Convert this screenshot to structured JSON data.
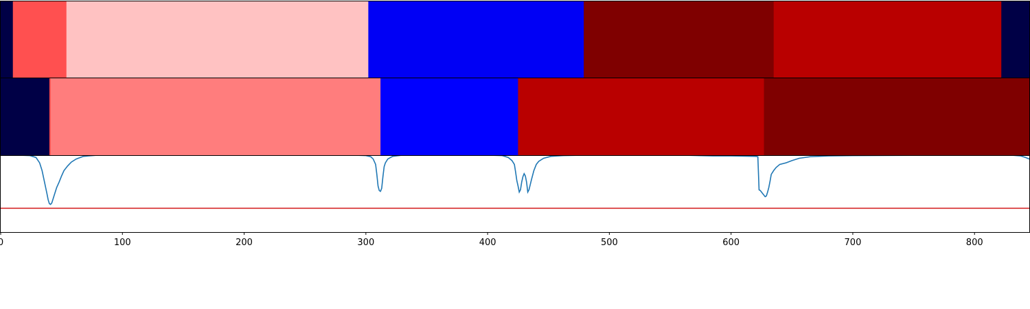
{
  "chart_data": [
    {
      "type": "heatmap",
      "x_range": [
        0,
        845
      ],
      "segments": [
        {
          "start": 0,
          "end": 10,
          "color": "#000046"
        },
        {
          "start": 10,
          "end": 54,
          "color": "#ff5050"
        },
        {
          "start": 54,
          "end": 302,
          "color": "#ffc2c2"
        },
        {
          "start": 302,
          "end": 479,
          "color": "#0000f5"
        },
        {
          "start": 479,
          "end": 635,
          "color": "#7f0000"
        },
        {
          "start": 635,
          "end": 822,
          "color": "#b90000"
        },
        {
          "start": 822,
          "end": 845,
          "color": "#000046"
        }
      ]
    },
    {
      "type": "heatmap",
      "x_range": [
        0,
        845
      ],
      "segments": [
        {
          "start": 0,
          "end": 40,
          "color": "#000046"
        },
        {
          "start": 40,
          "end": 41,
          "color": "#ff4a4a"
        },
        {
          "start": 41,
          "end": 312,
          "color": "#ff7d7d"
        },
        {
          "start": 312,
          "end": 425,
          "color": "#0000ff"
        },
        {
          "start": 425,
          "end": 627,
          "color": "#b90000"
        },
        {
          "start": 627,
          "end": 845,
          "color": "#7f0000"
        }
      ]
    },
    {
      "type": "line",
      "xlim": [
        0,
        845
      ],
      "ylim": [
        0,
        1
      ],
      "x_ticks": [
        0,
        100,
        200,
        300,
        400,
        500,
        600,
        700,
        800
      ],
      "series": [
        {
          "color": "#1f77b4",
          "points": [
            [
              0,
              1.0
            ],
            [
              14,
              1.0
            ],
            [
              24,
              0.995
            ],
            [
              29,
              0.97
            ],
            [
              32,
              0.9
            ],
            [
              34,
              0.8
            ],
            [
              36,
              0.65
            ],
            [
              38,
              0.5
            ],
            [
              39,
              0.42
            ],
            [
              40,
              0.37
            ],
            [
              41,
              0.36
            ],
            [
              42,
              0.38
            ],
            [
              44,
              0.48
            ],
            [
              46,
              0.58
            ],
            [
              48,
              0.65
            ],
            [
              50,
              0.73
            ],
            [
              52,
              0.8
            ],
            [
              55,
              0.86
            ],
            [
              58,
              0.91
            ],
            [
              62,
              0.95
            ],
            [
              68,
              0.985
            ],
            [
              78,
              0.998
            ],
            [
              120,
              1.0
            ],
            [
              290,
              1.0
            ],
            [
              300,
              0.995
            ],
            [
              304,
              0.98
            ],
            [
              306,
              0.95
            ],
            [
              308,
              0.88
            ],
            [
              309,
              0.75
            ],
            [
              310,
              0.6
            ],
            [
              311,
              0.54
            ],
            [
              312,
              0.53
            ],
            [
              313,
              0.57
            ],
            [
              314,
              0.72
            ],
            [
              315,
              0.85
            ],
            [
              316,
              0.9
            ],
            [
              318,
              0.95
            ],
            [
              322,
              0.985
            ],
            [
              330,
              1.0
            ],
            [
              400,
              1.0
            ],
            [
              412,
              0.995
            ],
            [
              417,
              0.97
            ],
            [
              420,
              0.93
            ],
            [
              422,
              0.88
            ],
            [
              423,
              0.78
            ],
            [
              424,
              0.67
            ],
            [
              425,
              0.6
            ],
            [
              426,
              0.52
            ],
            [
              427,
              0.55
            ],
            [
              428,
              0.65
            ],
            [
              429,
              0.72
            ],
            [
              430,
              0.76
            ],
            [
              431,
              0.73
            ],
            [
              432,
              0.65
            ],
            [
              433,
              0.52
            ],
            [
              434,
              0.55
            ],
            [
              436,
              0.68
            ],
            [
              438,
              0.8
            ],
            [
              440,
              0.88
            ],
            [
              442,
              0.92
            ],
            [
              446,
              0.96
            ],
            [
              452,
              0.985
            ],
            [
              462,
              0.995
            ],
            [
              480,
              1.0
            ],
            [
              560,
              1.0
            ],
            [
              585,
              0.99
            ],
            [
              600,
              0.99
            ],
            [
              620,
              0.985
            ],
            [
              622,
              0.98
            ],
            [
              623,
              0.55
            ],
            [
              624,
              0.54
            ],
            [
              626,
              0.5
            ],
            [
              628,
              0.46
            ],
            [
              629,
              0.47
            ],
            [
              630,
              0.52
            ],
            [
              631,
              0.58
            ],
            [
              632,
              0.66
            ],
            [
              633,
              0.75
            ],
            [
              635,
              0.8
            ],
            [
              637,
              0.84
            ],
            [
              640,
              0.88
            ],
            [
              645,
              0.9
            ],
            [
              650,
              0.93
            ],
            [
              656,
              0.96
            ],
            [
              665,
              0.98
            ],
            [
              680,
              0.99
            ],
            [
              700,
              0.995
            ],
            [
              780,
              1.0
            ],
            [
              830,
              1.0
            ],
            [
              838,
              0.99
            ],
            [
              842,
              0.97
            ],
            [
              845,
              0.95
            ]
          ]
        },
        {
          "color": "#d62728",
          "points": [
            [
              0,
              0.31
            ],
            [
              845,
              0.31
            ]
          ]
        }
      ]
    }
  ]
}
